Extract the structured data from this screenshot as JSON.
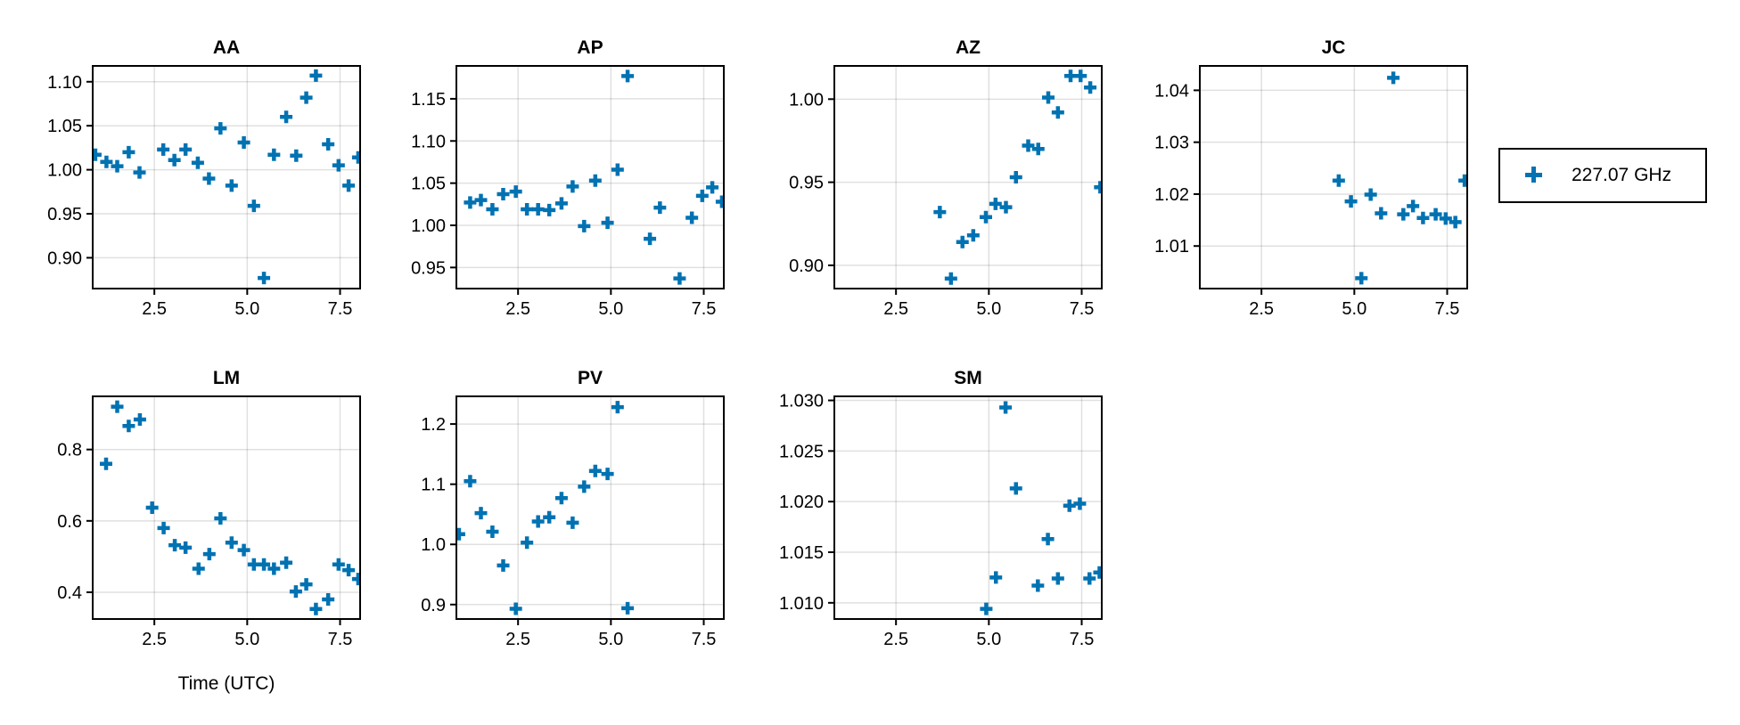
{
  "chart_data": {
    "type": "scatter",
    "xlabel": "Time (UTC)",
    "legend": {
      "entries": [
        "227.07 GHz"
      ],
      "placement": "right"
    },
    "marker_color": "#0072b2",
    "grid": true,
    "xlim": [
      0.84,
      8.04
    ],
    "xticks": [
      2.5,
      5.0,
      7.5
    ],
    "xtick_labels": [
      "2.5",
      "5.0",
      "7.5"
    ],
    "panels": [
      {
        "title": "AA",
        "ylim": [
          0.865,
          1.118
        ],
        "yticks": [
          0.9,
          0.95,
          1.0,
          1.05,
          1.1
        ],
        "ytick_labels": [
          "0.90",
          "0.95",
          "1.00",
          "1.05",
          "1.10"
        ],
        "x": [
          0.91,
          1.21,
          1.5,
          1.81,
          2.1,
          2.74,
          3.04,
          3.34,
          3.67,
          3.97,
          4.28,
          4.58,
          4.91,
          5.18,
          5.45,
          5.72,
          6.05,
          6.32,
          6.59,
          6.85,
          7.18,
          7.46,
          7.73,
          7.99
        ],
        "y": [
          1.017,
          1.009,
          1.004,
          1.02,
          0.997,
          1.023,
          1.011,
          1.023,
          1.008,
          0.99,
          1.047,
          0.982,
          1.031,
          0.959,
          0.877,
          1.017,
          1.06,
          1.016,
          1.082,
          1.107,
          1.029,
          1.005,
          0.982,
          1.014
        ]
      },
      {
        "title": "AP",
        "ylim": [
          0.925,
          1.189
        ],
        "yticks": [
          0.95,
          1.0,
          1.05,
          1.1,
          1.15
        ],
        "ytick_labels": [
          "0.95",
          "1.00",
          "1.05",
          "1.10",
          "1.15"
        ],
        "x": [
          1.21,
          1.5,
          1.81,
          2.1,
          2.44,
          2.74,
          3.04,
          3.34,
          3.67,
          3.97,
          4.28,
          4.58,
          4.91,
          5.18,
          5.45,
          6.05,
          6.32,
          6.85,
          7.18,
          7.46,
          7.73,
          7.99
        ],
        "y": [
          1.027,
          1.03,
          1.019,
          1.037,
          1.04,
          1.019,
          1.019,
          1.018,
          1.026,
          1.046,
          0.999,
          1.053,
          1.003,
          1.066,
          1.177,
          0.984,
          1.021,
          0.937,
          1.009,
          1.035,
          1.045,
          1.028
        ]
      },
      {
        "title": "AZ",
        "ylim": [
          0.886,
          1.02
        ],
        "yticks": [
          0.9,
          0.95,
          1.0
        ],
        "ytick_labels": [
          "0.90",
          "0.95",
          "1.00"
        ],
        "x": [
          3.68,
          3.98,
          4.29,
          4.58,
          4.92,
          5.18,
          5.46,
          5.73,
          6.06,
          6.33,
          6.6,
          6.86,
          7.2,
          7.47,
          7.73,
          8.0
        ],
        "y": [
          0.932,
          0.892,
          0.914,
          0.918,
          0.929,
          0.937,
          0.935,
          0.953,
          0.972,
          0.97,
          1.001,
          0.992,
          1.014,
          1.014,
          1.007,
          0.947
        ]
      },
      {
        "title": "JC",
        "ylim": [
          1.0018,
          1.0447
        ],
        "yticks": [
          1.01,
          1.02,
          1.03,
          1.04
        ],
        "ytick_labels": [
          "1.01",
          "1.02",
          "1.03",
          "1.04"
        ],
        "x": [
          4.58,
          4.91,
          5.19,
          5.44,
          5.72,
          6.05,
          6.32,
          6.58,
          6.85,
          7.19,
          7.46,
          7.72,
          7.97
        ],
        "y": [
          1.0226,
          1.0186,
          1.0038,
          1.0199,
          1.0163,
          1.0424,
          1.0161,
          1.0177,
          1.0154,
          1.0161,
          1.0153,
          1.0146,
          1.0226
        ]
      },
      {
        "title": "LM",
        "ylim": [
          0.325,
          0.949
        ],
        "yticks": [
          0.4,
          0.6,
          0.8
        ],
        "ytick_labels": [
          "0.4",
          "0.6",
          "0.8"
        ],
        "x": [
          1.2,
          1.5,
          1.81,
          2.11,
          2.44,
          2.75,
          3.05,
          3.34,
          3.69,
          3.98,
          4.28,
          4.58,
          4.91,
          5.18,
          5.45,
          5.72,
          6.05,
          6.31,
          6.59,
          6.85,
          7.18,
          7.46,
          7.73,
          7.99
        ],
        "y": [
          0.76,
          0.92,
          0.866,
          0.884,
          0.637,
          0.58,
          0.532,
          0.525,
          0.466,
          0.507,
          0.607,
          0.539,
          0.518,
          0.478,
          0.478,
          0.466,
          0.483,
          0.402,
          0.422,
          0.353,
          0.38,
          0.478,
          0.462,
          0.437
        ]
      },
      {
        "title": "PV",
        "ylim": [
          0.876,
          1.246
        ],
        "yticks": [
          0.9,
          1.0,
          1.1,
          1.2
        ],
        "ytick_labels": [
          "0.9",
          "1.0",
          "1.1",
          "1.2"
        ],
        "x": [
          0.91,
          1.21,
          1.5,
          1.81,
          2.1,
          2.44,
          2.74,
          3.04,
          3.34,
          3.67,
          3.97,
          4.28,
          4.58,
          4.91,
          5.18,
          5.45
        ],
        "y": [
          1.017,
          1.105,
          1.052,
          1.021,
          0.965,
          0.893,
          1.003,
          1.038,
          1.045,
          1.077,
          1.036,
          1.096,
          1.122,
          1.117,
          1.228,
          0.894
        ]
      },
      {
        "title": "SM",
        "ylim": [
          1.0084,
          1.0304
        ],
        "yticks": [
          1.01,
          1.015,
          1.02,
          1.025,
          1.03
        ],
        "ytick_labels": [
          "1.010",
          "1.015",
          "1.020",
          "1.025",
          "1.030"
        ],
        "x": [
          4.93,
          5.19,
          5.45,
          5.73,
          6.32,
          6.59,
          6.86,
          7.17,
          7.45,
          7.71,
          7.98
        ],
        "y": [
          1.0094,
          1.0125,
          1.0293,
          1.0213,
          1.0117,
          1.0163,
          1.0124,
          1.0196,
          1.0198,
          1.0124,
          1.013
        ]
      }
    ]
  }
}
